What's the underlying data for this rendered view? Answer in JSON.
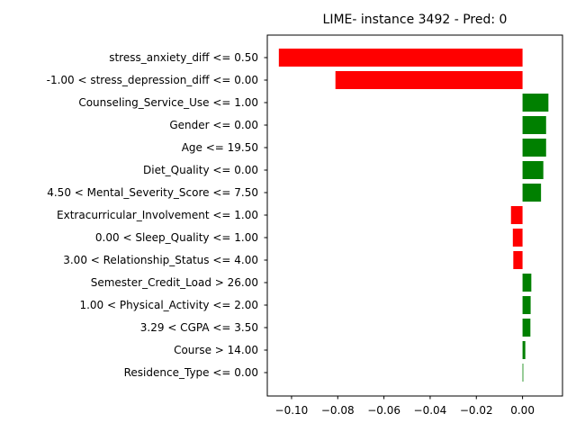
{
  "chart_data": {
    "type": "bar",
    "orientation": "horizontal",
    "title": "LIME- instance 3492 - Pred: 0",
    "xlabel": "",
    "ylabel": "",
    "categories": [
      "stress_anxiety_diff <= 0.50",
      "-1.00 < stress_depression_diff <= 0.00",
      "Counseling_Service_Use <= 1.00",
      "Gender <= 0.00",
      "Age <= 19.50",
      "Diet_Quality <= 0.00",
      "4.50 < Mental_Severity_Score <= 7.50",
      "Extracurricular_Involvement <= 1.00",
      "0.00 < Sleep_Quality <= 1.00",
      "3.00 < Relationship_Status <= 4.00",
      "Semester_Credit_Load > 26.00",
      "1.00 < Physical_Activity <= 2.00",
      "3.29 < CGPA <= 3.50",
      "Course > 14.00",
      "Residence_Type <= 0.00"
    ],
    "values": [
      -0.1055,
      -0.081,
      0.0112,
      0.0102,
      0.0102,
      0.009,
      0.008,
      -0.005,
      -0.0042,
      -0.004,
      0.0038,
      0.0035,
      0.0034,
      0.0012,
      0.0003
    ],
    "xlim": [
      -0.1105,
      0.0173
    ],
    "xticks": [
      -0.1,
      -0.08,
      -0.06,
      -0.04,
      -0.02,
      0.0
    ],
    "xtick_labels": [
      "−0.10",
      "−0.08",
      "−0.06",
      "−0.04",
      "−0.02",
      "0.00"
    ],
    "positive_color": "#008000",
    "negative_color": "#ff0000",
    "grid": false,
    "legend": "none"
  }
}
